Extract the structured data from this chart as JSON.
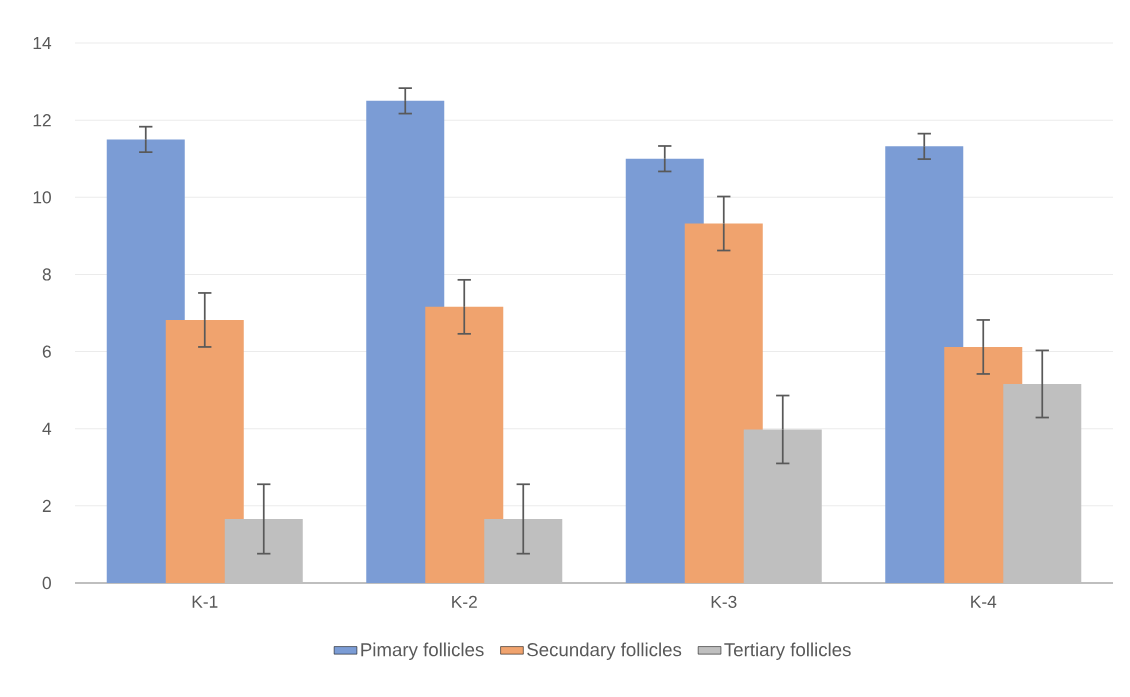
{
  "chart_data": {
    "type": "bar",
    "categories": [
      "K-1",
      "K-2",
      "K-3",
      "K-4"
    ],
    "series": [
      {
        "name": "Pimary follicles",
        "color": "#7b9cd5",
        "values": [
          11.5,
          12.5,
          11,
          11.32
        ],
        "errors": [
          0.33,
          0.33,
          0.33,
          0.33
        ]
      },
      {
        "name": "Secundary follicles",
        "color": "#f0a36e",
        "values": [
          6.82,
          7.16,
          9.32,
          6.12
        ],
        "errors": [
          0.7,
          0.7,
          0.7,
          0.7
        ]
      },
      {
        "name": "Tertiary follicles",
        "color": "#bfbfbf",
        "values": [
          1.66,
          1.66,
          3.98,
          5.16
        ],
        "errors": [
          0.9,
          0.9,
          0.88,
          0.87
        ]
      }
    ],
    "ylim": [
      0,
      14
    ],
    "yticks": [
      0,
      2,
      4,
      6,
      8,
      10,
      12,
      14
    ],
    "grid": "y",
    "legend": "bottom"
  }
}
